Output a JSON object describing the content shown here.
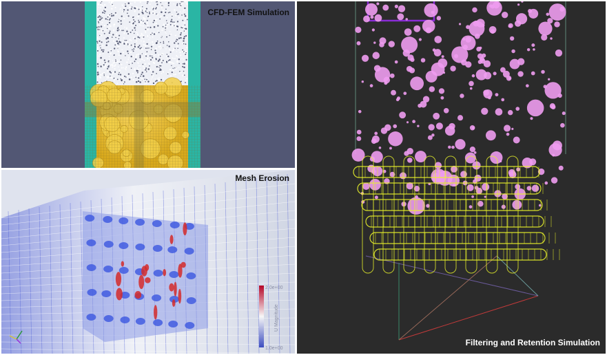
{
  "panels": {
    "cfd": {
      "caption": "CFD-FEM Simulation"
    },
    "mesh": {
      "caption": "Mesh Erosion",
      "colorbar": {
        "max_label": "2.0e+00",
        "min_label": "1.0e+00",
        "title": "U Magnitude",
        "colors": [
          "#3b4cc0",
          "#f7f7f7",
          "#b40426"
        ]
      }
    },
    "filter": {
      "caption": "Filtering and Retention Simulation"
    }
  },
  "colors": {
    "cfd_background": "#525774",
    "fluid_wall": "#2ab5a4",
    "particles": "#ffffff",
    "filter_yellow": "#e8c23a",
    "mesh_background": "#dfe3ee",
    "erosion_blue": "#3b56e0",
    "erosion_red": "#d42a2a",
    "sim_background": "#2b2b2b",
    "spheres_pink": "#ee9cf0",
    "mesh_yellow": "#e9f22a"
  }
}
